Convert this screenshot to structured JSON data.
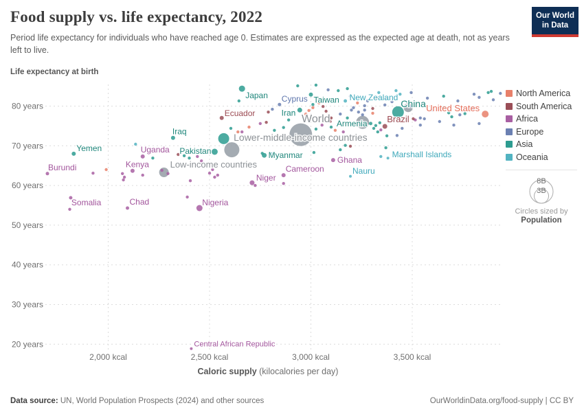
{
  "header": {
    "title": "Food supply vs. life expectancy, 2022",
    "subtitle": "Period life expectancy for individuals who have reached age 0. Estimates are expressed as the expected age at death, not as years left to live.",
    "logo_line1": "Our World",
    "logo_line2": "in Data"
  },
  "axis": {
    "y_title": "Life expectancy at birth",
    "x_title_bold": "Caloric supply",
    "x_title_rest": " (kilocalories per day)"
  },
  "legend": {
    "items": [
      {
        "label": "North America",
        "color": "#E8806A"
      },
      {
        "label": "South America",
        "color": "#9A4E57"
      },
      {
        "label": "Africa",
        "color": "#A85FA2"
      },
      {
        "label": "Europe",
        "color": "#6B80B2"
      },
      {
        "label": "Asia",
        "color": "#2D9C90"
      },
      {
        "label": "Oceania",
        "color": "#52B3C1"
      }
    ],
    "size_legend": {
      "big": "8B",
      "small": "3B",
      "caption_line1": "Circles sized by",
      "caption_line2": "Population"
    }
  },
  "footer": {
    "source_bold": "Data source:",
    "source_rest": " UN, World Population Prospects (2024) and other sources",
    "right": "OurWorldinData.org/food-supply | CC BY"
  },
  "chart_data": {
    "type": "scatter",
    "title": "Food supply vs. life expectancy, 2022",
    "xlabel": "Caloric supply (kilocalories per day)",
    "ylabel": "Life expectancy at birth",
    "xlim": [
      1650,
      3980
    ],
    "ylim": [
      17,
      87
    ],
    "grid": "dashed",
    "legend_position": "right",
    "x_ticks": [
      {
        "value": 2000,
        "label": "2,000 kcal"
      },
      {
        "value": 2500,
        "label": "2,500 kcal"
      },
      {
        "value": 3000,
        "label": "3,000 kcal"
      },
      {
        "value": 3500,
        "label": "3,500 kcal"
      }
    ],
    "y_ticks": [
      {
        "value": 80,
        "label": "80 years"
      },
      {
        "value": 70,
        "label": "70 years"
      },
      {
        "value": 60,
        "label": "60 years"
      },
      {
        "value": 50,
        "label": "50 years"
      },
      {
        "value": 40,
        "label": "40 years"
      },
      {
        "value": 30,
        "label": "30 years"
      },
      {
        "value": 20,
        "label": "20 years"
      }
    ],
    "colors": {
      "North America": "#E8806A",
      "South America": "#9A4E57",
      "Africa": "#A85FA2",
      "Europe": "#6B80B2",
      "Asia": "#2D9C90",
      "Oceania": "#52B3C1",
      "World": "#949CA4"
    },
    "label_colors": {
      "North America": "#E56E5A",
      "South America": "#9B4A52",
      "Africa": "#A2559C",
      "Europe": "#5E76AC",
      "Asia": "#1F867B",
      "Oceania": "#3EA8BA",
      "World": "#8C9196"
    },
    "points_format": [
      "kcal",
      "years",
      "continent",
      "radius",
      "label",
      "label_dx",
      "label_dy",
      "label_anchor",
      "label_size"
    ],
    "points": [
      [
        2660,
        84.4,
        "Asia",
        4.5,
        "Japan",
        5,
        14,
        "start",
        12
      ],
      [
        2845,
        80.4,
        "Europe",
        2.5,
        "Cyprus",
        3,
        -4,
        "start",
        12
      ],
      [
        3000,
        82.9,
        "Asia",
        3,
        "Taiwan",
        4,
        12,
        "start",
        12
      ],
      [
        3170,
        81.3,
        "Oceania",
        2.5,
        "New Zealand",
        6,
        -1,
        "start",
        12
      ],
      [
        3430,
        78.5,
        "Asia",
        8.5,
        "China",
        4,
        -7,
        "start",
        14
      ],
      [
        3860,
        78.0,
        "North America",
        5,
        "United States",
        -8,
        -4,
        "end",
        13
      ],
      [
        2560,
        77.0,
        "South America",
        3,
        "Ecuador",
        4,
        -3,
        "start",
        12
      ],
      [
        2945,
        79.0,
        "Asia",
        3.5,
        "Iran",
        -6,
        8,
        "end",
        12
      ],
      [
        2950,
        72.8,
        "World",
        16.5,
        "World",
        22,
        -18,
        "middle",
        16
      ],
      [
        3295,
        75.6,
        "Asia",
        2.5,
        "Armenia",
        -5,
        4,
        "end",
        12
      ],
      [
        3365,
        74.9,
        "South America",
        3.5,
        "Brazil",
        3,
        -6,
        "start",
        13
      ],
      [
        2610,
        69.0,
        "World",
        11,
        "Lower-middle-income countries",
        100,
        -13,
        "middle",
        14
      ],
      [
        3255,
        75.9,
        "World",
        9.5
      ],
      [
        3480,
        79.6,
        "World",
        6.5
      ],
      [
        2570,
        71.8,
        "Asia",
        8
      ],
      [
        2320,
        72.0,
        "Asia",
        3,
        "Iraq",
        -1,
        -5,
        "start",
        12
      ],
      [
        1830,
        68.0,
        "Asia",
        3,
        "Yemen",
        4,
        -4,
        "start",
        12
      ],
      [
        2170,
        67.3,
        "Africa",
        3,
        "Uganda",
        -3,
        -6,
        "start",
        12
      ],
      [
        2525,
        68.5,
        "Asia",
        4.5,
        "Pakistan",
        -5,
        3,
        "end",
        12
      ],
      [
        2120,
        63.7,
        "Africa",
        3,
        "Kenya",
        7,
        -5,
        "middle",
        12
      ],
      [
        2275,
        63.3,
        "World",
        7,
        "Low-income countries",
        9,
        -7,
        "start",
        13
      ],
      [
        1700,
        63.0,
        "Africa",
        2.5,
        "Burundi",
        1,
        -5,
        "start",
        12
      ],
      [
        2710,
        60.7,
        "Africa",
        3.5,
        "Niger",
        6,
        -3,
        "start",
        12
      ],
      [
        2865,
        62.6,
        "Africa",
        3,
        "Cameroon",
        3,
        -5,
        "start",
        12
      ],
      [
        2450,
        54.3,
        "Africa",
        4.5,
        "Nigeria",
        4,
        -4,
        "start",
        12
      ],
      [
        2095,
        54.3,
        "Africa",
        2.5,
        "Chad",
        3,
        -5,
        "start",
        12
      ],
      [
        1815,
        56.9,
        "Africa",
        2.5,
        "Somalia",
        1,
        11,
        "start",
        12
      ],
      [
        2770,
        67.6,
        "Asia",
        3.5,
        "Myanmar",
        6,
        4,
        "start",
        12
      ],
      [
        3110,
        66.4,
        "Africa",
        3,
        "Ghana",
        6,
        4,
        "start",
        12
      ],
      [
        3195,
        62.3,
        "Oceania",
        2,
        "Nauru",
        3,
        -4,
        "start",
        12
      ],
      [
        3380,
        66.9,
        "Oceania",
        2,
        "Marshall Islands",
        6,
        -1,
        "start",
        12
      ],
      [
        2410,
        18.9,
        "Africa",
        2,
        "Central African Republic",
        4,
        -3,
        "start",
        11
      ],
      [
        3495,
        83.4,
        "Europe"
      ],
      [
        3575,
        82.0,
        "Europe"
      ],
      [
        3655,
        82.5,
        "Asia"
      ],
      [
        3725,
        81.3,
        "Europe"
      ],
      [
        3830,
        82.2,
        "Europe"
      ],
      [
        3875,
        83.4,
        "Asia"
      ],
      [
        3900,
        81.6,
        "Europe"
      ],
      [
        3735,
        77.8,
        "Europe"
      ],
      [
        3760,
        78.1,
        "Asia"
      ],
      [
        3695,
        77.3,
        "Asia"
      ],
      [
        3680,
        78.3,
        "Asia"
      ],
      [
        3635,
        76.1,
        "Europe"
      ],
      [
        3560,
        76.8,
        "Europe"
      ],
      [
        3495,
        79.9,
        "Europe"
      ],
      [
        3705,
        75.2,
        "Europe"
      ],
      [
        3830,
        75.6,
        "Europe"
      ],
      [
        3450,
        74.4,
        "Europe"
      ],
      [
        3515,
        76.5,
        "Africa"
      ],
      [
        3505,
        76.8,
        "South America"
      ],
      [
        3540,
        77.0,
        "Europe"
      ],
      [
        3540,
        75.2,
        "Europe"
      ],
      [
        3600,
        79.0,
        "Europe"
      ],
      [
        3800,
        79.4,
        "Europe"
      ],
      [
        3655,
        79.7,
        "Asia"
      ],
      [
        3935,
        83.2,
        "Europe"
      ],
      [
        3890,
        83.7,
        "Asia"
      ],
      [
        3805,
        83.0,
        "Europe"
      ],
      [
        3515,
        80.1,
        "South America"
      ],
      [
        3365,
        80.3,
        "Europe"
      ],
      [
        3305,
        79.4,
        "South America"
      ],
      [
        3265,
        79.0,
        "Europe"
      ],
      [
        3235,
        78.5,
        "Europe"
      ],
      [
        3255,
        77.8,
        "Europe"
      ],
      [
        3305,
        78.2,
        "North America"
      ],
      [
        3265,
        80.1,
        "Europe"
      ],
      [
        3210,
        79.6,
        "Europe"
      ],
      [
        3180,
        84.4,
        "Asia"
      ],
      [
        3135,
        83.9,
        "Asia"
      ],
      [
        3195,
        82.5,
        "Europe"
      ],
      [
        3025,
        85.3,
        "Asia"
      ],
      [
        2935,
        85.1,
        "Asia"
      ],
      [
        3085,
        84.1,
        "Europe"
      ],
      [
        3420,
        83.9,
        "Oceania"
      ],
      [
        3440,
        83.0,
        "Oceania"
      ],
      [
        3335,
        83.4,
        "Oceania"
      ],
      [
        3370,
        81.8,
        "Europe"
      ],
      [
        3400,
        81.1,
        "Europe"
      ],
      [
        3325,
        82.0,
        "North America"
      ],
      [
        3280,
        81.3,
        "Europe"
      ],
      [
        3230,
        80.8,
        "North America"
      ],
      [
        2645,
        81.3,
        "Asia"
      ],
      [
        2790,
        78.5,
        "South America"
      ],
      [
        2810,
        79.2,
        "Europe"
      ],
      [
        3010,
        79.6,
        "North America"
      ],
      [
        2990,
        78.9,
        "North America"
      ],
      [
        3060,
        79.9,
        "South America"
      ],
      [
        3010,
        80.4,
        "Asia"
      ],
      [
        3040,
        80.8,
        "North America"
      ],
      [
        3075,
        78.7,
        "South America"
      ],
      [
        3100,
        77.0,
        "South America"
      ],
      [
        3095,
        76.1,
        "South America"
      ],
      [
        2915,
        78.5,
        "Asia"
      ],
      [
        2890,
        76.5,
        "Asia"
      ],
      [
        2975,
        78.0,
        "North America"
      ],
      [
        3025,
        74.2,
        "Asia"
      ],
      [
        3055,
        75.2,
        "Africa"
      ],
      [
        3100,
        74.7,
        "Asia"
      ],
      [
        3120,
        73.9,
        "North America"
      ],
      [
        3160,
        73.5,
        "Africa"
      ],
      [
        3170,
        70.1,
        "Asia"
      ],
      [
        3320,
        75.1,
        "Asia"
      ],
      [
        3330,
        73.5,
        "Asia"
      ],
      [
        3340,
        75.8,
        "Asia"
      ],
      [
        3310,
        74.4,
        "Asia"
      ],
      [
        3345,
        74.0,
        "Africa"
      ],
      [
        3375,
        72.5,
        "Asia"
      ],
      [
        3180,
        77.0,
        "Asia"
      ],
      [
        3200,
        79.0,
        "Europe"
      ],
      [
        3145,
        78.0,
        "Europe"
      ],
      [
        2695,
        74.7,
        "North America"
      ],
      [
        2750,
        75.6,
        "Africa"
      ],
      [
        2780,
        75.9,
        "South America"
      ],
      [
        2820,
        73.9,
        "Asia"
      ],
      [
        2865,
        74.6,
        "Asia"
      ],
      [
        2660,
        73.5,
        "Africa"
      ],
      [
        2605,
        74.4,
        "Asia"
      ],
      [
        2640,
        73.5,
        "North America"
      ],
      [
        3425,
        72.6,
        "Europe"
      ],
      [
        3195,
        69.9,
        "South America"
      ],
      [
        3145,
        69.0,
        "Asia"
      ],
      [
        3370,
        69.5,
        "Asia"
      ],
      [
        3015,
        68.3,
        "Asia"
      ],
      [
        2760,
        68.1,
        "Asia"
      ],
      [
        2805,
        68.0,
        "Oceania"
      ],
      [
        3345,
        67.3,
        "Oceania"
      ],
      [
        2375,
        67.5,
        "Asia"
      ],
      [
        2400,
        66.9,
        "Asia"
      ],
      [
        2440,
        67.3,
        "Africa"
      ],
      [
        2345,
        67.8,
        "South America"
      ],
      [
        2460,
        66.2,
        "Africa"
      ],
      [
        2500,
        63.1,
        "Africa"
      ],
      [
        2540,
        62.6,
        "Africa"
      ],
      [
        2515,
        64.0,
        "Africa"
      ],
      [
        1925,
        63.1,
        "Africa"
      ],
      [
        1990,
        64.0,
        "North America"
      ],
      [
        2070,
        63.0,
        "Africa"
      ],
      [
        2080,
        62.1,
        "Africa"
      ],
      [
        2075,
        61.4,
        "Africa"
      ],
      [
        2170,
        62.6,
        "Africa"
      ],
      [
        2220,
        66.9,
        "Asia"
      ],
      [
        2135,
        70.4,
        "Oceania"
      ],
      [
        2265,
        63.8,
        "Africa"
      ],
      [
        2295,
        63.0,
        "Africa"
      ],
      [
        2405,
        61.2,
        "Africa"
      ],
      [
        2390,
        57.1,
        "Africa"
      ],
      [
        2525,
        62.1,
        "Africa"
      ],
      [
        2725,
        60.0,
        "Africa"
      ],
      [
        2865,
        60.5,
        "Africa"
      ],
      [
        1810,
        54.0,
        "Africa"
      ]
    ]
  }
}
